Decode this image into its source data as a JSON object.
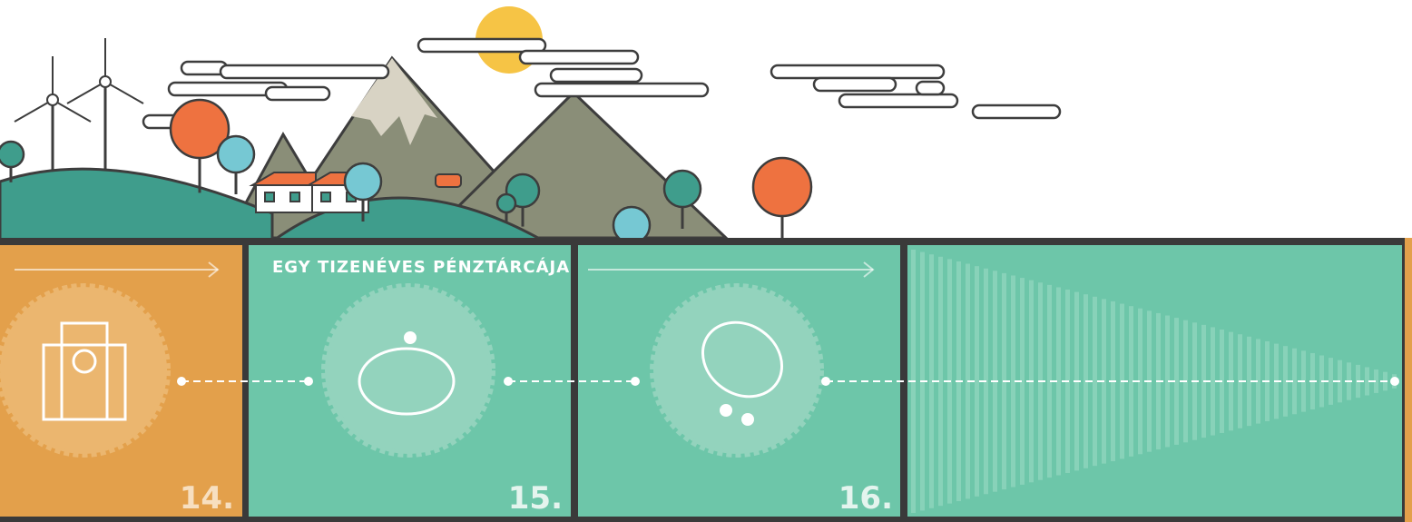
{
  "panels": [
    {
      "number": "14."
    },
    {
      "title": "EGY TIZENÉVES PÉNZTÁRCÁJA",
      "number": "15."
    },
    {
      "number": "16."
    }
  ]
}
